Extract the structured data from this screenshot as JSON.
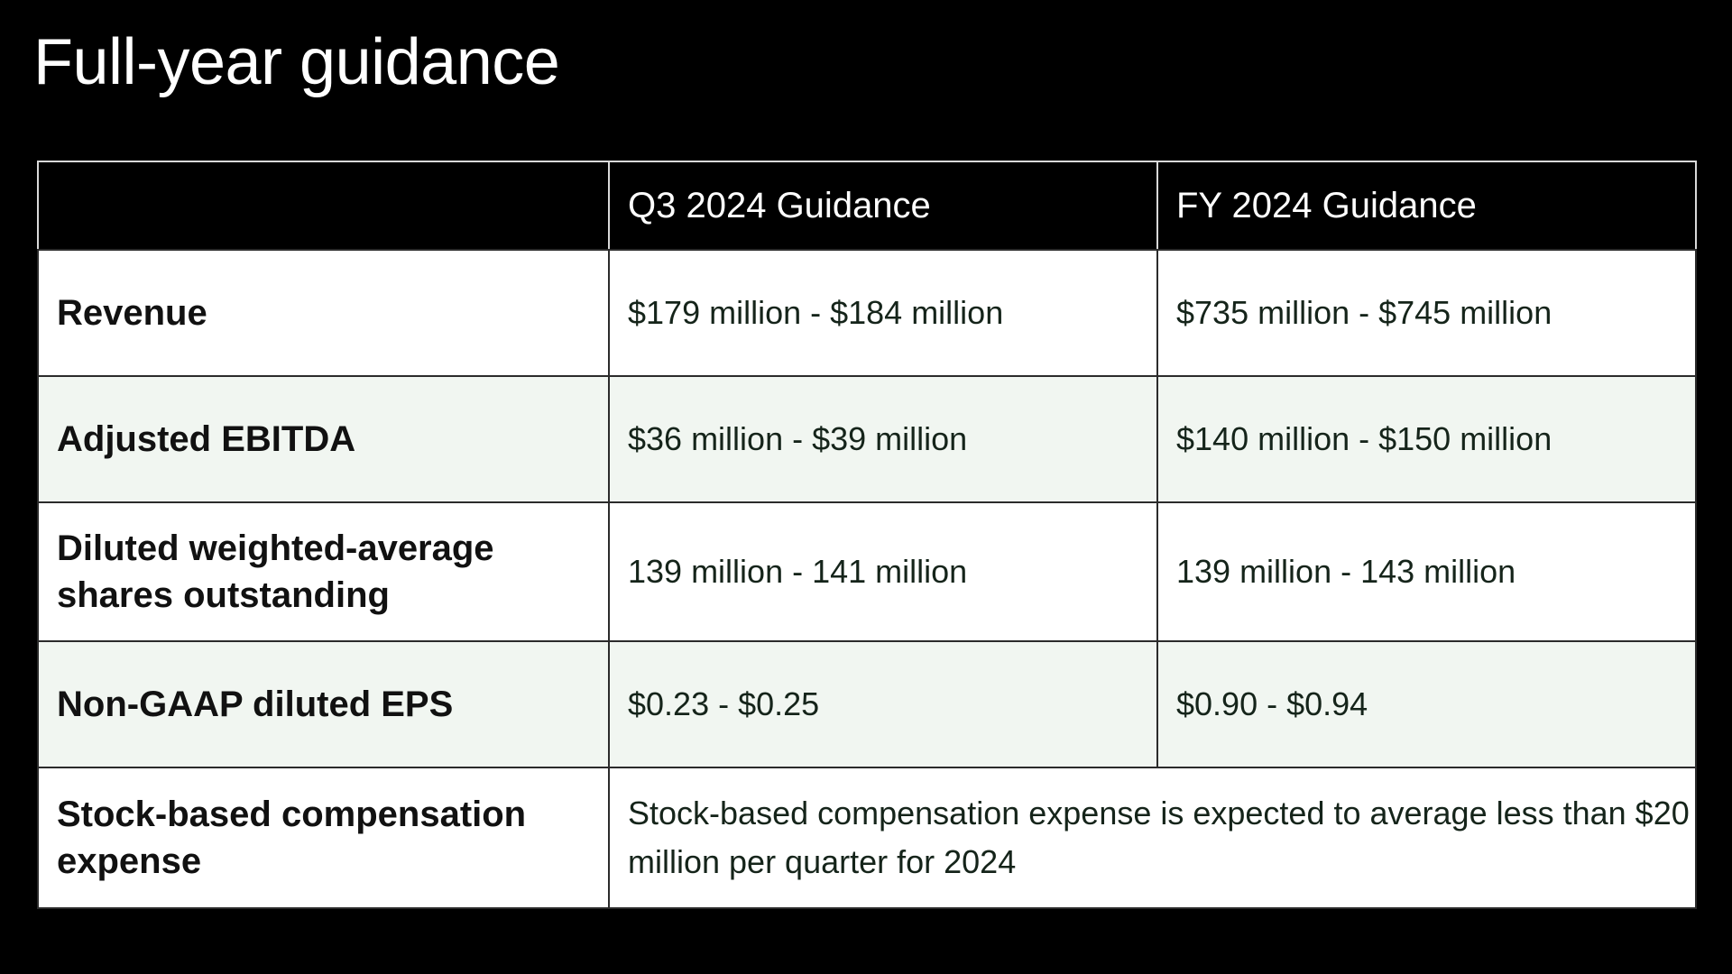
{
  "title": "Full-year guidance",
  "table": {
    "header": {
      "label": "",
      "q3": "Q3 2024 Guidance",
      "fy": "FY 2024 Guidance"
    },
    "rows": [
      {
        "label": "Revenue",
        "q3": "$179 million - $184 million",
        "fy": "$735 million - $745 million"
      },
      {
        "label": "Adjusted EBITDA",
        "q3": "$36 million - $39 million",
        "fy": "$140 million - $150 million"
      },
      {
        "label": "Diluted weighted-average shares outstanding",
        "q3": "139 million - 141 million",
        "fy": "139 million - 143 million"
      },
      {
        "label": "Non-GAAP diluted EPS",
        "q3": "$0.23 - $0.25",
        "fy": "$0.90 - $0.94"
      },
      {
        "label": "Stock-based compensation expense",
        "note": "Stock-based compensation expense is expected to average less than $20 million per quarter for 2024"
      }
    ]
  },
  "colors": {
    "background": "#000000",
    "row_white": "#ffffff",
    "row_tint": "#f1f6f1",
    "grid": "#2b2b2b"
  }
}
